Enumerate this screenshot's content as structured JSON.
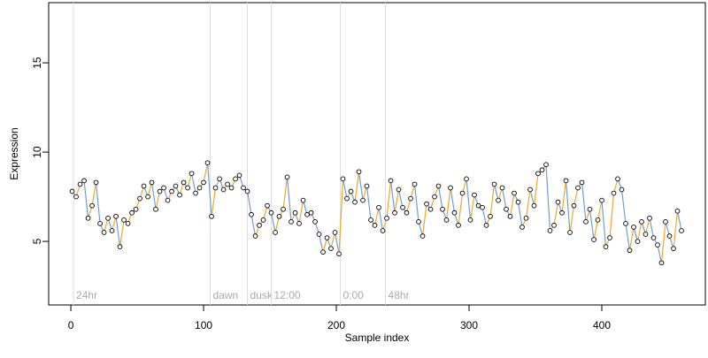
{
  "chart_data": {
    "type": "line",
    "xlabel": "Sample index",
    "ylabel": "Expression",
    "xlim": [
      -16.7,
      478
    ],
    "ylim": [
      1.44,
      18.37
    ],
    "xticks": [
      0,
      100,
      200,
      300,
      400
    ],
    "yticks": [
      5,
      10,
      15
    ],
    "up_color": "#f5a623",
    "down_color": "#6f9ed8",
    "point_color": "#000000",
    "annotations": [
      {
        "x": 2,
        "label": "24hr"
      },
      {
        "x": 105,
        "label": "dawn"
      },
      {
        "x": 133,
        "label": "dusk"
      },
      {
        "x": 151,
        "label": "12:00"
      },
      {
        "x": 203,
        "label": "0:00"
      },
      {
        "x": 237,
        "label": "48hr"
      }
    ],
    "x": [
      1,
      4,
      7,
      10,
      13,
      16,
      19,
      22,
      25,
      28,
      31,
      34,
      37,
      40,
      43,
      46,
      49,
      52,
      55,
      58,
      61,
      64,
      67,
      70,
      73,
      76,
      79,
      82,
      85,
      88,
      91,
      94,
      97,
      100,
      103,
      106,
      109,
      112,
      115,
      118,
      121,
      124,
      127,
      130,
      133,
      136,
      139,
      142,
      145,
      148,
      151,
      154,
      157,
      160,
      163,
      166,
      169,
      172,
      175,
      178,
      181,
      184,
      187,
      190,
      193,
      196,
      199,
      202,
      205,
      208,
      211,
      214,
      217,
      220,
      223,
      226,
      229,
      232,
      235,
      238,
      241,
      244,
      247,
      250,
      253,
      256,
      259,
      262,
      265,
      268,
      271,
      274,
      277,
      280,
      283,
      286,
      289,
      292,
      295,
      298,
      301,
      304,
      307,
      310,
      313,
      316,
      319,
      322,
      325,
      328,
      331,
      334,
      337,
      340,
      343,
      346,
      349,
      352,
      355,
      358,
      361,
      364,
      367,
      370,
      373,
      376,
      379,
      382,
      385,
      388,
      391,
      394,
      397,
      400,
      403,
      406,
      409,
      412,
      415,
      418,
      421,
      424,
      427,
      430,
      433,
      436,
      439,
      442,
      445,
      448,
      451,
      454,
      457,
      460
    ],
    "values": [
      7.8,
      7.5,
      8.2,
      8.4,
      6.3,
      7.0,
      8.3,
      6.0,
      5.5,
      6.3,
      5.6,
      6.4,
      4.7,
      6.2,
      6.0,
      6.6,
      6.8,
      7.4,
      8.1,
      7.5,
      8.3,
      6.8,
      7.8,
      8.0,
      7.3,
      7.8,
      8.1,
      7.6,
      8.3,
      8.0,
      8.8,
      7.7,
      8.0,
      8.3,
      9.4,
      6.4,
      8.0,
      8.5,
      7.9,
      8.2,
      8.0,
      8.5,
      8.7,
      8.0,
      7.8,
      6.5,
      5.3,
      5.9,
      6.2,
      7.0,
      6.6,
      5.5,
      6.4,
      6.8,
      8.6,
      6.1,
      6.6,
      6.0,
      7.3,
      6.5,
      6.6,
      6.1,
      5.4,
      4.4,
      5.2,
      4.6,
      5.5,
      4.3,
      8.5,
      7.4,
      7.8,
      7.2,
      8.9,
      7.3,
      8.1,
      6.2,
      5.9,
      6.9,
      5.6,
      6.3,
      8.4,
      6.6,
      7.9,
      6.9,
      6.6,
      7.4,
      8.2,
      6.1,
      5.3,
      7.1,
      6.8,
      7.5,
      8.1,
      6.8,
      6.2,
      8.0,
      6.6,
      5.9,
      7.7,
      8.5,
      6.2,
      7.6,
      7.0,
      6.9,
      5.9,
      6.4,
      8.2,
      7.3,
      8.0,
      6.8,
      6.4,
      7.7,
      7.2,
      5.8,
      6.3,
      7.9,
      7.0,
      8.8,
      9.0,
      9.3,
      5.6,
      5.9,
      7.2,
      6.6,
      8.4,
      5.5,
      7.0,
      8.0,
      8.3,
      6.1,
      6.8,
      5.1,
      6.2,
      7.3,
      4.7,
      5.2,
      7.7,
      8.5,
      7.9,
      6.0,
      4.5,
      5.8,
      5.0,
      6.1,
      5.4,
      6.3,
      5.2,
      4.8,
      3.8,
      6.1,
      5.3,
      4.6,
      6.7,
      5.6
    ]
  }
}
